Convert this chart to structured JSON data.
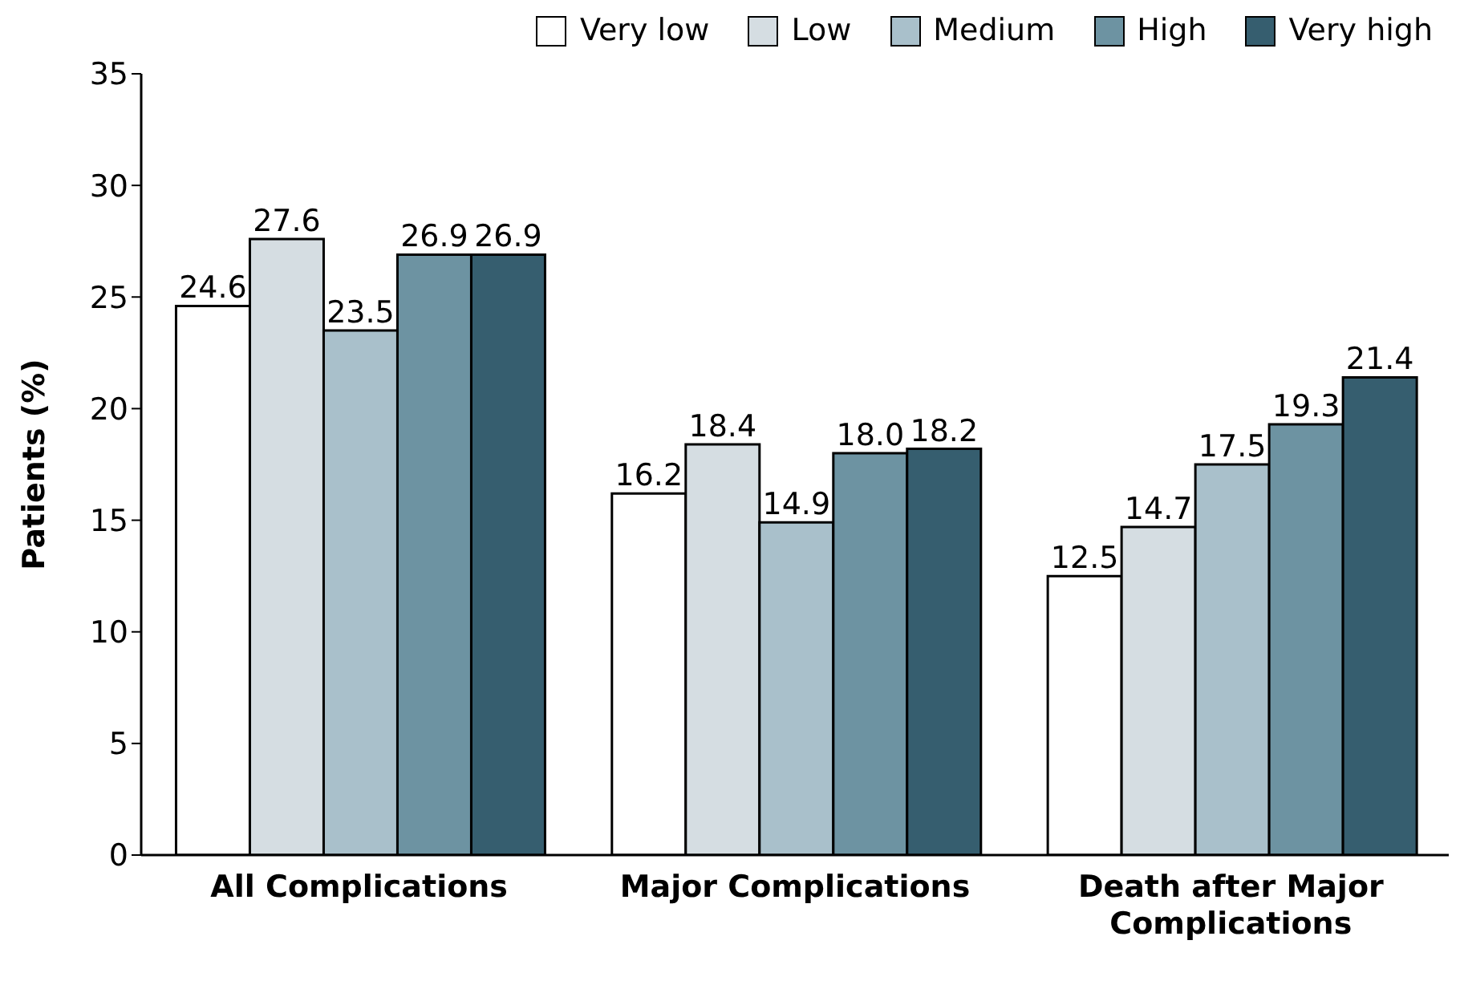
{
  "chart_data": {
    "type": "bar",
    "ylabel": "Patients (%)",
    "categories": [
      "All Complications",
      "Major Complications",
      "Death after Major Complications"
    ],
    "series": [
      {
        "name": "Very low",
        "color": "#ffffff",
        "values": [
          24.6,
          16.2,
          12.5
        ],
        "value_labels": [
          "24.6",
          "16.2",
          "12.5"
        ]
      },
      {
        "name": "Low",
        "color": "#d5dde2",
        "values": [
          27.6,
          18.4,
          14.7
        ],
        "value_labels": [
          "27.6",
          "18.4",
          "14.7"
        ]
      },
      {
        "name": "Medium",
        "color": "#a9c0cb",
        "values": [
          23.5,
          14.9,
          17.5
        ],
        "value_labels": [
          "23.5",
          "14.9",
          "17.5"
        ]
      },
      {
        "name": "High",
        "color": "#6d93a2",
        "values": [
          26.9,
          18.0,
          19.3
        ],
        "value_labels": [
          "26.9",
          "18.0",
          "19.3"
        ]
      },
      {
        "name": "Very high",
        "color": "#365e6f",
        "values": [
          26.9,
          18.2,
          21.4
        ],
        "value_labels": [
          "26.9",
          "18.2",
          "21.4"
        ]
      }
    ],
    "ylim": [
      0,
      35
    ],
    "yticks": [
      0,
      5,
      10,
      15,
      20,
      25,
      30,
      35
    ],
    "grid": false,
    "legend": "top right"
  }
}
